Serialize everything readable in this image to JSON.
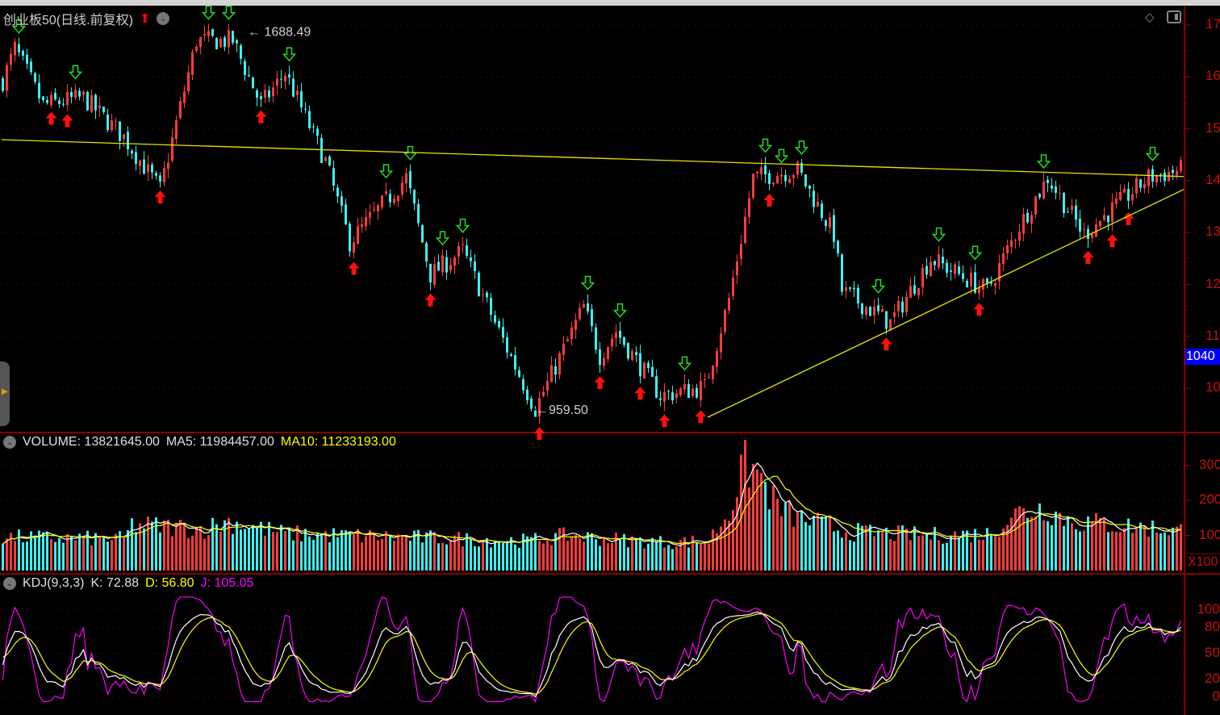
{
  "title": "创业板50(日线.前复权)",
  "icons": {
    "up": "red-up-arrow-icon",
    "collapse": "chevron-down-circle-icon",
    "diamond": "diamond-icon",
    "panel": "panel-toggle-icon"
  },
  "colors": {
    "up": "#ff3c3c",
    "down": "#3cf0f0",
    "ma_white": "#ffffff",
    "ma_yellow": "#ffff00",
    "kdj_j": "#ff00ff",
    "axis": "#c81010",
    "grid": "#8b0000",
    "trend": "#e6e600",
    "current_bg": "#0000ff"
  },
  "price_axis": [
    "17",
    "16",
    "15",
    "14",
    "13",
    "12",
    "11",
    "10"
  ],
  "current_price": "1040",
  "volume_axis": [
    "300",
    "200",
    "100"
  ],
  "volume_unit": "X100",
  "kdj_axis": [
    "100",
    "80",
    "50",
    "20",
    "0"
  ],
  "volume_header": {
    "volume": "VOLUME: 13821645.00",
    "ma5": "MA5: 11984457.00",
    "ma10": "MA10: 11233193.00"
  },
  "kdj_header": {
    "name": "KDJ(9,3,3)",
    "k": "K: 72.88",
    "d": "D: 56.80",
    "j": "J: 105.05"
  },
  "chart_data": {
    "type": "candlestick",
    "high_label": "1688.49",
    "low_label": "959.50",
    "high_value": 1688.49,
    "low_value": 959.5,
    "price_range": [
      930,
      1740
    ],
    "close_keypoints": [
      [
        0,
        1593
      ],
      [
        3,
        1655
      ],
      [
        10,
        1546
      ],
      [
        20,
        1560
      ],
      [
        30,
        1484
      ],
      [
        39,
        1383
      ],
      [
        48,
        1670
      ],
      [
        57,
        1670
      ],
      [
        64,
        1546
      ],
      [
        70,
        1608
      ],
      [
        80,
        1437
      ],
      [
        86,
        1282
      ],
      [
        100,
        1406
      ],
      [
        106,
        1219
      ],
      [
        114,
        1265
      ],
      [
        122,
        1126
      ],
      [
        132,
        960
      ],
      [
        144,
        1157
      ],
      [
        148,
        1063
      ],
      [
        152,
        1110
      ],
      [
        163,
        986
      ],
      [
        174,
        1002
      ],
      [
        180,
        1172
      ],
      [
        182,
        1250
      ],
      [
        186,
        1406
      ],
      [
        197,
        1421
      ],
      [
        206,
        1297
      ],
      [
        208,
        1188
      ],
      [
        220,
        1126
      ],
      [
        230,
        1250
      ],
      [
        244,
        1188
      ],
      [
        252,
        1313
      ],
      [
        259,
        1406
      ],
      [
        268,
        1297
      ],
      [
        284,
        1406
      ],
      [
        292,
        1421
      ]
    ],
    "volume_keypoints": [
      [
        0,
        95
      ],
      [
        30,
        90
      ],
      [
        32,
        130
      ],
      [
        50,
        120
      ],
      [
        56,
        140
      ],
      [
        70,
        105
      ],
      [
        100,
        95
      ],
      [
        130,
        85
      ],
      [
        140,
        100
      ],
      [
        150,
        90
      ],
      [
        165,
        80
      ],
      [
        175,
        85
      ],
      [
        180,
        170
      ],
      [
        184,
        300
      ],
      [
        187,
        280
      ],
      [
        192,
        180
      ],
      [
        197,
        150
      ],
      [
        210,
        110
      ],
      [
        230,
        100
      ],
      [
        245,
        105
      ],
      [
        250,
        160
      ],
      [
        258,
        180
      ],
      [
        265,
        140
      ],
      [
        292,
        115
      ]
    ],
    "trendlines": [
      {
        "from": [
          0,
          1479
        ],
        "to": [
          293,
          1408
        ]
      },
      {
        "from": [
          175,
          944
        ],
        "to": [
          293,
          1383
        ]
      }
    ],
    "kdj_params": [
      9,
      3,
      3
    ],
    "volume_ma": [
      5,
      10
    ]
  }
}
